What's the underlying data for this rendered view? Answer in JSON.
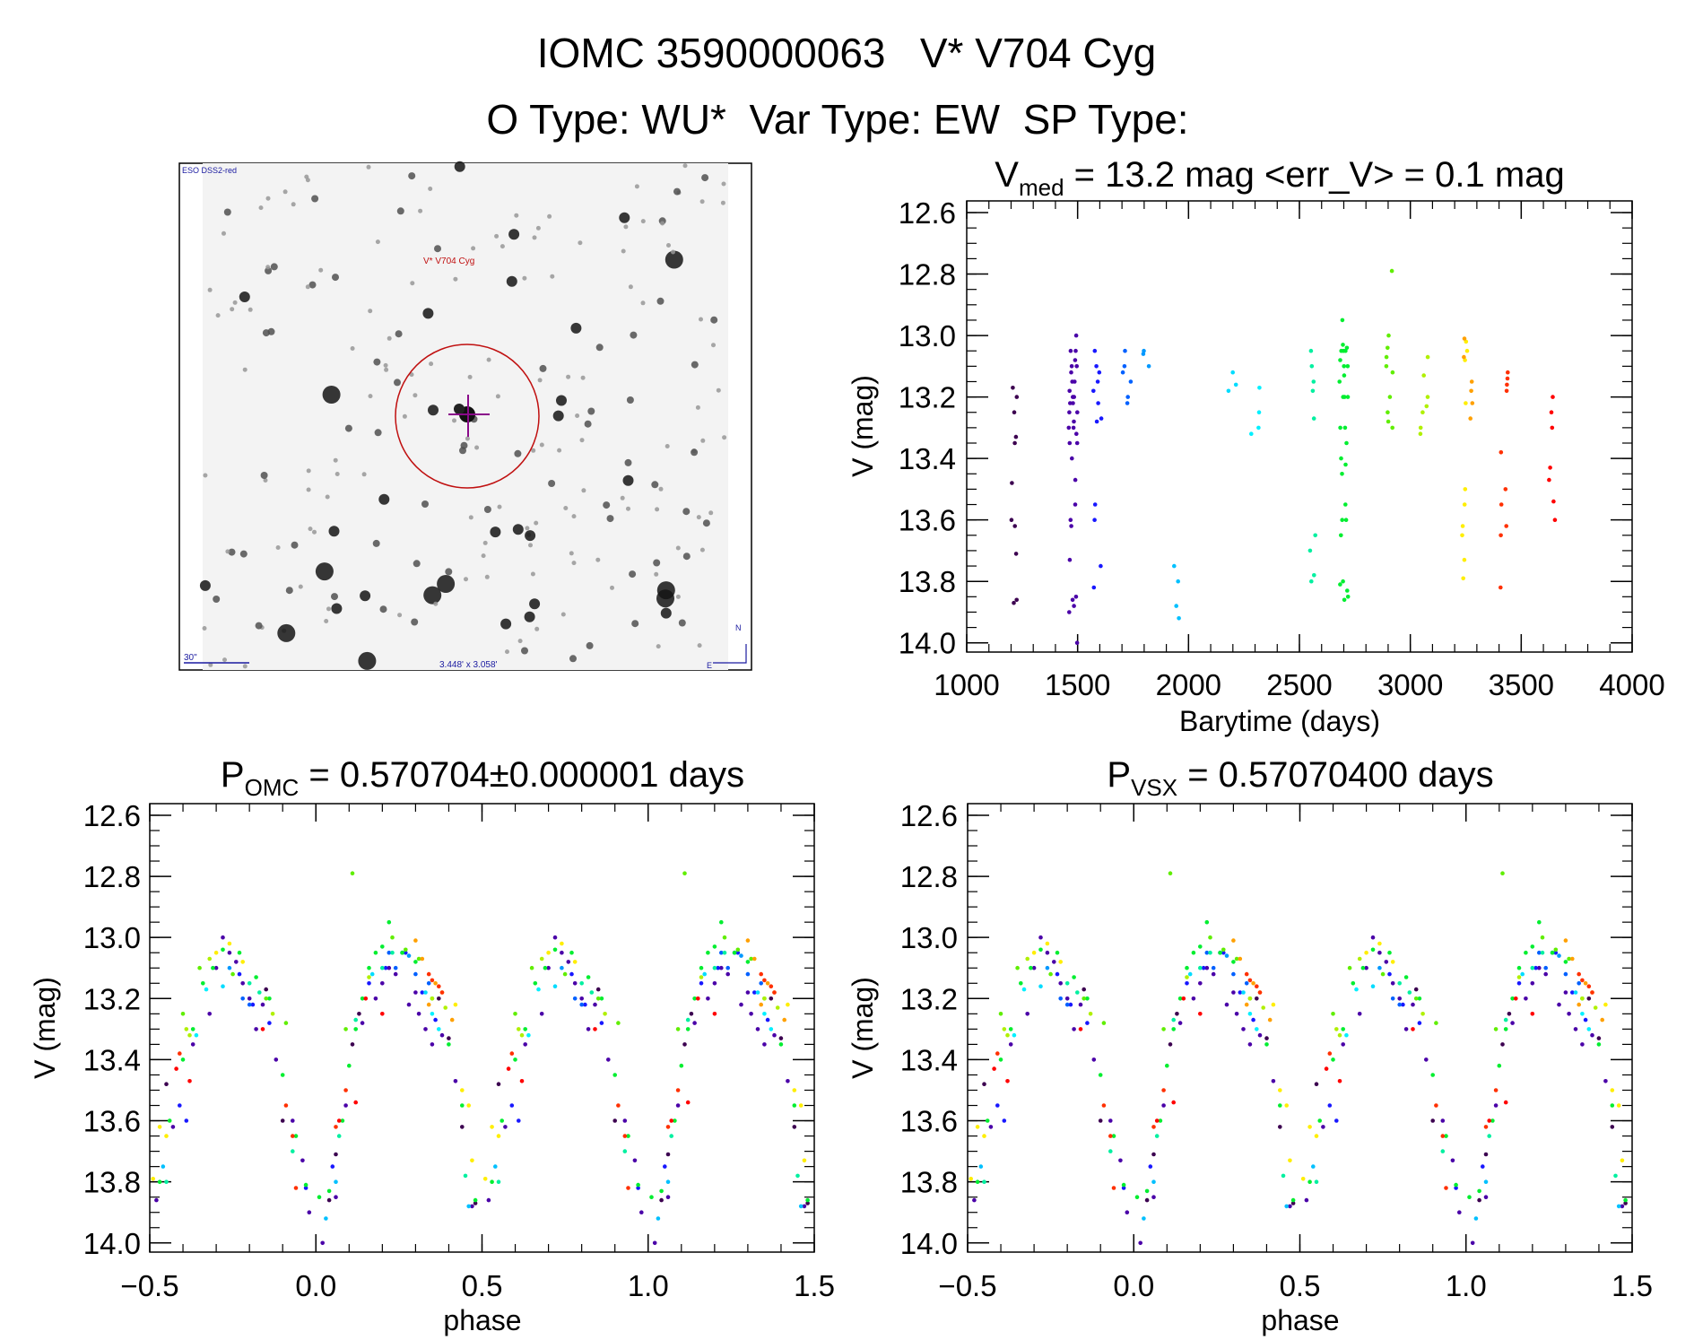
{
  "header": {
    "title": "IOMC 3590000063   V* V704 Cyg",
    "subtitle": "O Type: WU*  Var Type: EW  SP Type:"
  },
  "finder_image": {
    "survey_label": "ESO DSS2-red",
    "target_label": "V* V704 Cyg",
    "scale_label": "30\"",
    "size_label": "3.448' x 3.058'",
    "north_label": "N",
    "east_label": "E"
  },
  "chart_data": [
    {
      "id": "lightcurve",
      "type": "scatter",
      "title_main": "V",
      "title_sub": "med",
      "title_rest": " = 13.2 mag <err_V> = 0.1 mag",
      "xlabel": "Barytime (days)",
      "ylabel": "V (mag)",
      "xlim": [
        1000,
        4000
      ],
      "ylim": [
        12.562,
        14.03
      ],
      "y_inverted": true,
      "xticks": [
        1000,
        1500,
        2000,
        2500,
        3000,
        3500,
        4000
      ],
      "xtick_labels": [
        "1000",
        "1500",
        "2000",
        "2500",
        "3000",
        "3500",
        "4000"
      ],
      "yticks": [
        12.6,
        12.8,
        13.0,
        13.2,
        13.4,
        13.6,
        13.8,
        14.0
      ],
      "ytick_labels": [
        "12.6",
        "12.8",
        "13.0",
        "13.2",
        "13.4",
        "13.6",
        "13.8",
        "14.0"
      ]
    },
    {
      "id": "phase_omc",
      "type": "scatter",
      "title_main": "P",
      "title_sub": "OMC",
      "title_rest": " = 0.570704±0.000001 days",
      "xlabel": "phase",
      "ylabel": "V (mag)",
      "xlim": [
        -0.5,
        1.5
      ],
      "ylim": [
        12.562,
        14.03
      ],
      "y_inverted": true,
      "xticks": [
        -0.5,
        0.0,
        0.5,
        1.0,
        1.5
      ],
      "xtick_labels": [
        "−0.5",
        "0.0",
        "0.5",
        "1.0",
        "1.5"
      ],
      "yticks": [
        12.6,
        12.8,
        13.0,
        13.2,
        13.4,
        13.6,
        13.8,
        14.0
      ],
      "ytick_labels": [
        "12.6",
        "12.8",
        "13.0",
        "13.2",
        "13.4",
        "13.6",
        "13.8",
        "14.0"
      ]
    },
    {
      "id": "phase_vsx",
      "type": "scatter",
      "title_main": "P",
      "title_sub": "VSX",
      "title_rest": " = 0.57070400 days",
      "xlabel": "phase",
      "ylabel": "V (mag)",
      "xlim": [
        -0.5,
        1.5
      ],
      "ylim": [
        12.562,
        14.03
      ],
      "y_inverted": true,
      "xticks": [
        -0.5,
        0.0,
        0.5,
        1.0,
        1.5
      ],
      "xtick_labels": [
        "−0.5",
        "0.0",
        "0.5",
        "1.0",
        "1.5"
      ],
      "yticks": [
        12.6,
        12.8,
        13.0,
        13.2,
        13.4,
        13.6,
        13.8,
        14.0
      ],
      "ytick_labels": [
        "12.6",
        "12.8",
        "13.0",
        "13.2",
        "13.4",
        "13.6",
        "13.8",
        "14.0"
      ]
    }
  ],
  "observations": [
    {
      "t": 1210,
      "color": "#3c0050",
      "points": [
        [
          0.04,
          13.86
        ],
        [
          0.06,
          13.71
        ],
        [
          0.11,
          13.35
        ],
        [
          0.13,
          13.25
        ],
        [
          0.37,
          13.2
        ],
        [
          0.4,
          13.33
        ],
        [
          0.44,
          13.62
        ],
        [
          0.48,
          13.87
        ],
        [
          0.55,
          13.48
        ],
        [
          0.9,
          13.6
        ],
        [
          0.85,
          13.17
        ]
      ]
    },
    {
      "t": 1480,
      "color": "#4a00a8",
      "points": [
        [
          0.02,
          14.0
        ],
        [
          0.06,
          13.85
        ],
        [
          0.09,
          13.55
        ],
        [
          0.14,
          13.28
        ],
        [
          0.18,
          13.2
        ],
        [
          0.2,
          13.15
        ],
        [
          0.22,
          13.1
        ],
        [
          0.24,
          13.12
        ],
        [
          0.26,
          13.05
        ],
        [
          0.28,
          13.22
        ],
        [
          0.3,
          13.18
        ],
        [
          0.31,
          13.25
        ],
        [
          0.33,
          13.3
        ],
        [
          0.35,
          13.35
        ],
        [
          0.38,
          13.32
        ],
        [
          0.42,
          13.47
        ],
        [
          0.47,
          13.88
        ],
        [
          0.52,
          13.86
        ],
        [
          0.57,
          13.62
        ],
        [
          0.63,
          13.35
        ],
        [
          0.68,
          13.25
        ],
        [
          0.7,
          13.1
        ],
        [
          0.72,
          13.0
        ],
        [
          0.74,
          13.05
        ],
        [
          0.76,
          13.08
        ],
        [
          0.78,
          13.15
        ],
        [
          0.8,
          13.2
        ],
        [
          0.82,
          13.3
        ],
        [
          0.84,
          13.22
        ],
        [
          0.88,
          13.4
        ],
        [
          0.93,
          13.6
        ],
        [
          0.96,
          13.73
        ],
        [
          0.98,
          13.9
        ]
      ]
    },
    {
      "t": 1590,
      "color": "#1818ff",
      "points": [
        [
          0.16,
          13.15
        ],
        [
          0.21,
          13.1
        ],
        [
          0.27,
          13.05
        ],
        [
          0.32,
          13.18
        ],
        [
          0.36,
          13.27
        ],
        [
          0.59,
          13.55
        ],
        [
          0.61,
          13.6
        ],
        [
          0.77,
          13.12
        ],
        [
          0.81,
          13.22
        ],
        [
          0.86,
          13.28
        ],
        [
          0.97,
          13.82
        ],
        [
          0.05,
          13.75
        ]
      ]
    },
    {
      "t": 1720,
      "color": "#0060ff",
      "points": [
        [
          0.22,
          13.05
        ],
        [
          0.24,
          13.1
        ],
        [
          0.3,
          13.12
        ],
        [
          0.34,
          13.15
        ],
        [
          0.78,
          13.2
        ],
        [
          0.8,
          13.22
        ]
      ]
    },
    {
      "t": 1810,
      "color": "#0098ff",
      "points": [
        [
          0.26,
          13.05
        ],
        [
          0.28,
          13.06
        ],
        [
          0.74,
          13.1
        ]
      ]
    },
    {
      "t": 1940,
      "color": "#00c0ff",
      "points": [
        [
          0.03,
          13.92
        ],
        [
          0.46,
          13.88
        ],
        [
          0.54,
          13.75
        ],
        [
          0.06,
          13.8
        ]
      ]
    },
    {
      "t": 2200,
      "color": "#00dcff",
      "points": [
        [
          0.17,
          13.12
        ],
        [
          0.72,
          13.16
        ],
        [
          0.33,
          13.18
        ]
      ]
    },
    {
      "t": 2300,
      "color": "#00f0ff",
      "points": [
        [
          0.35,
          13.25
        ],
        [
          0.37,
          13.3
        ],
        [
          0.64,
          13.32
        ],
        [
          0.67,
          13.17
        ]
      ]
    },
    {
      "t": 2560,
      "color": "#00f0a0",
      "points": [
        [
          0.12,
          13.27
        ],
        [
          0.2,
          13.1
        ],
        [
          0.23,
          13.05
        ],
        [
          0.8,
          13.15
        ],
        [
          0.83,
          13.18
        ],
        [
          0.07,
          13.65
        ],
        [
          0.93,
          13.7
        ],
        [
          0.45,
          13.78
        ],
        [
          0.55,
          13.8
        ]
      ]
    },
    {
      "t": 2700,
      "color": "#00ee30",
      "points": [
        [
          0.01,
          13.85
        ],
        [
          0.04,
          13.83
        ],
        [
          0.08,
          13.6
        ],
        [
          0.1,
          13.42
        ],
        [
          0.12,
          13.3
        ],
        [
          0.14,
          13.2
        ],
        [
          0.16,
          13.1
        ],
        [
          0.18,
          13.05
        ],
        [
          0.2,
          13.03
        ],
        [
          0.22,
          12.95
        ],
        [
          0.26,
          13.05
        ],
        [
          0.3,
          13.08
        ],
        [
          0.35,
          13.2
        ],
        [
          0.4,
          13.35
        ],
        [
          0.44,
          13.55
        ],
        [
          0.48,
          13.86
        ],
        [
          0.53,
          13.8
        ],
        [
          0.56,
          13.6
        ],
        [
          0.6,
          13.4
        ],
        [
          0.63,
          13.3
        ],
        [
          0.66,
          13.15
        ],
        [
          0.69,
          13.1
        ],
        [
          0.72,
          13.04
        ],
        [
          0.77,
          13.05
        ],
        [
          0.82,
          13.13
        ],
        [
          0.86,
          13.2
        ],
        [
          0.9,
          13.45
        ],
        [
          0.94,
          13.65
        ],
        [
          0.97,
          13.81
        ]
      ]
    },
    {
      "t": 2910,
      "color": "#60ee00",
      "points": [
        [
          0.11,
          12.79
        ],
        [
          0.23,
          13.0
        ],
        [
          0.27,
          13.04
        ],
        [
          0.31,
          13.07
        ],
        [
          0.65,
          13.1
        ],
        [
          0.75,
          13.12
        ],
        [
          0.85,
          13.2
        ],
        [
          0.91,
          13.28
        ],
        [
          0.09,
          13.3
        ],
        [
          0.6,
          13.25
        ]
      ]
    },
    {
      "t": 3060,
      "color": "#b0f000",
      "points": [
        [
          0.68,
          13.07
        ],
        [
          0.16,
          13.13
        ],
        [
          0.35,
          13.2
        ],
        [
          0.39,
          13.23
        ],
        [
          0.87,
          13.25
        ],
        [
          0.61,
          13.3
        ],
        [
          0.62,
          13.32
        ]
      ]
    },
    {
      "t": 3240,
      "color": "#ffee00",
      "points": [
        [
          0.74,
          13.02
        ],
        [
          0.78,
          13.08
        ],
        [
          0.7,
          13.05
        ],
        [
          0.42,
          13.22
        ],
        [
          0.44,
          13.5
        ],
        [
          0.46,
          13.55
        ],
        [
          0.53,
          13.62
        ],
        [
          0.55,
          13.65
        ],
        [
          0.47,
          13.73
        ],
        [
          0.51,
          13.79
        ]
      ]
    },
    {
      "t": 3260,
      "color": "#ffa000",
      "points": [
        [
          0.3,
          13.01
        ],
        [
          0.32,
          13.07
        ],
        [
          0.36,
          13.15
        ],
        [
          0.38,
          13.18
        ],
        [
          0.34,
          13.22
        ],
        [
          0.41,
          13.27
        ]
      ]
    },
    {
      "t": 3420,
      "color": "#ff3000",
      "points": [
        [
          0.34,
          13.12
        ],
        [
          0.35,
          13.14
        ],
        [
          0.37,
          13.16
        ],
        [
          0.38,
          13.18
        ],
        [
          0.59,
          13.38
        ],
        [
          0.09,
          13.5
        ],
        [
          0.91,
          13.55
        ],
        [
          0.06,
          13.62
        ],
        [
          0.93,
          13.65
        ],
        [
          0.94,
          13.82
        ]
      ]
    },
    {
      "t": 3640,
      "color": "#ff0000",
      "points": [
        [
          0.15,
          13.2
        ],
        [
          0.2,
          13.25
        ],
        [
          0.84,
          13.3
        ],
        [
          0.58,
          13.43
        ],
        [
          0.62,
          13.47
        ],
        [
          0.07,
          13.6
        ],
        [
          0.12,
          13.54
        ]
      ]
    }
  ]
}
